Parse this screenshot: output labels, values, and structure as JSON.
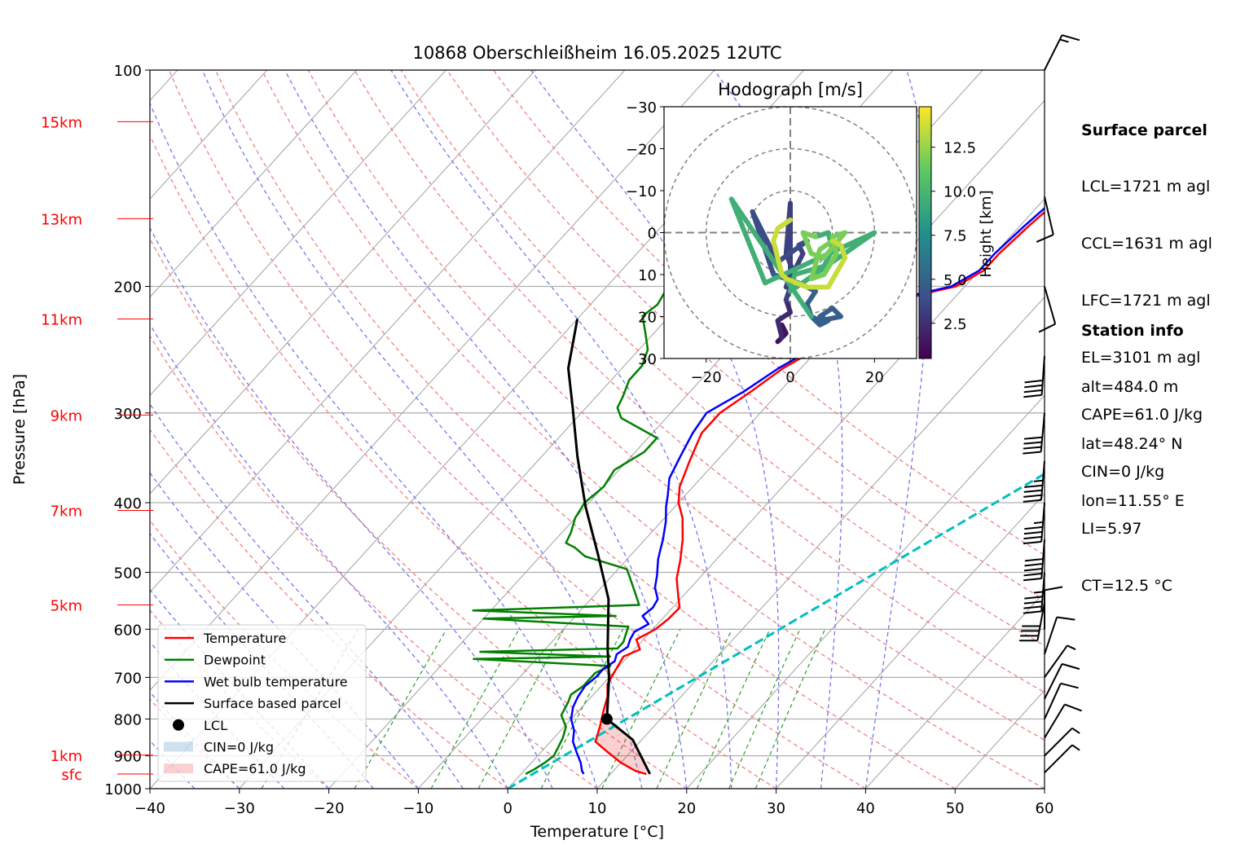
{
  "chart_data": {
    "type": "line",
    "title": "10868 Oberschleißheim 16.05.2025 12UTC",
    "xlabel": "Temperature [°C]",
    "ylabel": "Pressure [hPa]",
    "xlim": [
      -40,
      60
    ],
    "ylim": [
      1000,
      100
    ],
    "y_scale": "log",
    "x_ticks": [
      -40,
      -30,
      -20,
      -10,
      0,
      10,
      20,
      30,
      40,
      50,
      60
    ],
    "x_tick_labels": [
      "−40",
      "−30",
      "−20",
      "−10",
      "0",
      "10",
      "20",
      "30",
      "40",
      "50",
      "60"
    ],
    "y_ticks": [
      1000,
      900,
      800,
      700,
      600,
      500,
      400,
      300,
      200,
      100
    ],
    "y_tick_labels": [
      "1000",
      "900",
      "800",
      "700",
      "600",
      "500",
      "400",
      "300",
      "200",
      "100"
    ],
    "height_labels": [
      {
        "label": "sfc",
        "p": 954
      },
      {
        "label": "1km",
        "p": 898
      },
      {
        "label": "5km",
        "p": 555
      },
      {
        "label": "7km",
        "p": 410
      },
      {
        "label": "9km",
        "p": 302
      },
      {
        "label": "11km",
        "p": 222
      },
      {
        "label": "13km",
        "p": 161
      },
      {
        "label": "15km",
        "p": 118
      }
    ],
    "series": [
      {
        "name": "Temperature",
        "color": "#ff0000",
        "points": [
          [
            14.0,
            954
          ],
          [
            12.5,
            945
          ],
          [
            10.0,
            920
          ],
          [
            7.5,
            890
          ],
          [
            5.0,
            860
          ],
          [
            4.0,
            820
          ],
          [
            2.8,
            780
          ],
          [
            1.8,
            745
          ],
          [
            0.5,
            715
          ],
          [
            0.0,
            685
          ],
          [
            -0.5,
            655
          ],
          [
            0.6,
            640
          ],
          [
            -0.8,
            620
          ],
          [
            0.3,
            600
          ],
          [
            0.7,
            580
          ],
          [
            0.8,
            560
          ],
          [
            -0.5,
            540
          ],
          [
            -2.5,
            510
          ],
          [
            -4.0,
            480
          ],
          [
            -5.8,
            450
          ],
          [
            -8.0,
            420
          ],
          [
            -10.0,
            400
          ],
          [
            -11.5,
            380
          ],
          [
            -13.0,
            350
          ],
          [
            -14.5,
            320
          ],
          [
            -14.5,
            300
          ],
          [
            -13.2,
            280
          ],
          [
            -12.0,
            260
          ],
          [
            -10.0,
            243
          ],
          [
            -8.5,
            228
          ],
          [
            -6.2,
            212
          ],
          [
            -4.0,
            205
          ],
          [
            -1.0,
            200
          ],
          [
            0.5,
            190
          ],
          [
            0.5,
            180
          ],
          [
            1.0,
            165
          ],
          [
            1.5,
            155
          ],
          [
            2.5,
            140
          ],
          [
            3.0,
            130
          ],
          [
            6.0,
            125
          ],
          [
            8.0,
            122
          ],
          [
            9.5,
            118
          ],
          [
            11.0,
            113
          ],
          [
            10.5,
            110
          ]
        ]
      },
      {
        "name": "Dewpoint",
        "color": "#008000",
        "points": [
          [
            0.5,
            954
          ],
          [
            1.0,
            940
          ],
          [
            1.5,
            920
          ],
          [
            1.8,
            900
          ],
          [
            1.5,
            880
          ],
          [
            1.0,
            850
          ],
          [
            0.2,
            820
          ],
          [
            -1.5,
            790
          ],
          [
            -2.0,
            760
          ],
          [
            -2.5,
            740
          ],
          [
            -2.0,
            720
          ],
          [
            -2.0,
            690
          ],
          [
            -1.0,
            675
          ],
          [
            -17.0,
            660
          ],
          [
            -2.0,
            655
          ],
          [
            -17.0,
            645
          ],
          [
            -2.0,
            638
          ],
          [
            -2.0,
            625
          ],
          [
            -2.5,
            610
          ],
          [
            -3.0,
            595
          ],
          [
            -20.0,
            580
          ],
          [
            -5.5,
            575
          ],
          [
            -22.0,
            565
          ],
          [
            -4.0,
            555
          ],
          [
            -6.0,
            530
          ],
          [
            -9.0,
            495
          ],
          [
            -15.0,
            475
          ],
          [
            -17.0,
            462
          ],
          [
            -18.5,
            455
          ],
          [
            -19.0,
            440
          ],
          [
            -20.0,
            420
          ],
          [
            -20.5,
            400
          ],
          [
            -20.0,
            380
          ],
          [
            -20.5,
            360
          ],
          [
            -19.0,
            340
          ],
          [
            -19.0,
            325
          ],
          [
            -25.0,
            305
          ],
          [
            -26.5,
            295
          ],
          [
            -27.0,
            285
          ],
          [
            -28.0,
            270
          ],
          [
            -28.0,
            258
          ],
          [
            -29.0,
            245
          ],
          [
            -31.0,
            232
          ],
          [
            -33.0,
            220
          ],
          [
            -32.5,
            212
          ],
          [
            -33.0,
            203
          ],
          [
            -34.0,
            195
          ],
          [
            -34.5,
            182
          ],
          [
            -34.5,
            168
          ],
          [
            -34.5,
            158
          ],
          [
            -35.5,
            148
          ],
          [
            -36.0,
            140
          ],
          [
            -37.0,
            130
          ],
          [
            -38.0,
            122
          ],
          [
            -38.5,
            115
          ]
        ]
      },
      {
        "name": "Wet bulb temperature",
        "color": "#0000ff",
        "points": [
          [
            7.0,
            954
          ],
          [
            6.5,
            945
          ],
          [
            5.5,
            920
          ],
          [
            4.0,
            890
          ],
          [
            2.5,
            860
          ],
          [
            1.5,
            830
          ],
          [
            0.0,
            800
          ],
          [
            -1.0,
            770
          ],
          [
            -1.5,
            745
          ],
          [
            -1.8,
            720
          ],
          [
            -1.5,
            700
          ],
          [
            -1.5,
            680
          ],
          [
            -1.0,
            665
          ],
          [
            -1.5,
            650
          ],
          [
            -1.0,
            635
          ],
          [
            -1.5,
            620
          ],
          [
            -1.8,
            605
          ],
          [
            -1.0,
            590
          ],
          [
            -2.5,
            575
          ],
          [
            -2.2,
            560
          ],
          [
            -2.5,
            545
          ],
          [
            -4.0,
            525
          ],
          [
            -5.0,
            505
          ],
          [
            -6.5,
            480
          ],
          [
            -7.0,
            470
          ],
          [
            -8.0,
            450
          ],
          [
            -9.5,
            425
          ],
          [
            -11.0,
            405
          ],
          [
            -12.0,
            390
          ],
          [
            -13.5,
            370
          ],
          [
            -14.5,
            345
          ],
          [
            -15.5,
            320
          ],
          [
            -16.0,
            300
          ],
          [
            -14.0,
            280
          ],
          [
            -12.5,
            260
          ],
          [
            -10.5,
            243
          ],
          [
            -9.0,
            228
          ],
          [
            -6.8,
            212
          ],
          [
            -4.5,
            205
          ],
          [
            -1.5,
            200
          ],
          [
            0.0,
            190
          ],
          [
            0.0,
            180
          ],
          [
            0.5,
            165
          ],
          [
            1.0,
            155
          ],
          [
            2.0,
            140
          ],
          [
            2.5,
            130
          ],
          [
            5.5,
            125
          ],
          [
            7.5,
            122
          ],
          [
            9.0,
            118
          ],
          [
            10.5,
            113
          ],
          [
            10.0,
            110
          ]
        ]
      },
      {
        "name": "Surface based parcel",
        "color": "#000000",
        "points": [
          [
            14.4,
            954
          ],
          [
            9.0,
            855
          ],
          [
            4.0,
            800
          ],
          [
            0.0,
            700
          ],
          [
            -3.0,
            640
          ],
          [
            -8.0,
            545
          ],
          [
            -13.5,
            475
          ],
          [
            -20.0,
            405
          ],
          [
            -26.0,
            345
          ],
          [
            -31.5,
            295
          ],
          [
            -36.0,
            260
          ],
          [
            -40.0,
            222
          ]
        ]
      }
    ],
    "markers": [
      {
        "name": "LCL",
        "x": 4.0,
        "p": 800
      }
    ],
    "shaded": [
      {
        "name": "CIN=0 J/kg",
        "color": "#1f77b4"
      },
      {
        "name": "CAPE=61.0 J/kg",
        "color": "#e6282c"
      }
    ],
    "cyan_line": {
      "from": [
        0.0,
        1000
      ],
      "to": [
        60.0,
        115
      ]
    },
    "legend": {
      "placement": "lower-left",
      "entries": [
        "Temperature",
        "Dewpoint",
        "Wet bulb temperature",
        "Surface based parcel",
        "LCL",
        "CIN=0 J/kg",
        "CAPE=61.0 J/kg"
      ]
    },
    "grid": true,
    "hodograph": {
      "title": "Hodograph [m/s]",
      "xlim": [
        -30,
        30
      ],
      "ylim": [
        -30,
        30
      ],
      "ticks": [
        -30,
        -20,
        -10,
        0,
        10,
        20,
        30
      ],
      "x_tick_labels": [
        "−20",
        "0",
        "20"
      ],
      "y_tick_labels": [
        "30",
        "20",
        "10",
        "0",
        "−10",
        "−20",
        "−30"
      ],
      "rings": [
        10,
        20,
        30
      ],
      "colorbar": {
        "label": "Height [km]",
        "ticks": [
          "2.5",
          "5.0",
          "7.5",
          "10.0",
          "12.5"
        ],
        "min": 0.5,
        "max": 14.8
      },
      "segments": [
        {
          "h": 1.2,
          "pts": [
            [
              -2,
              -22
            ],
            [
              -1,
              -24
            ],
            [
              -3,
              -26
            ],
            [
              -2,
              -25
            ]
          ]
        },
        {
          "h": 2.3,
          "pts": [
            [
              -2,
              -25
            ],
            [
              -3,
              -21
            ],
            [
              0,
              -19
            ],
            [
              -1,
              -16
            ]
          ]
        },
        {
          "h": 3.3,
          "pts": [
            [
              -1,
              -16
            ],
            [
              1,
              -10
            ],
            [
              -1,
              -5
            ],
            [
              0,
              7
            ],
            [
              0,
              -6
            ],
            [
              0,
              -10
            ],
            [
              -1,
              -13
            ],
            [
              1,
              -9
            ],
            [
              3,
              -5
            ],
            [
              2,
              -3
            ],
            [
              4,
              -2
            ]
          ]
        },
        {
          "h": 3.8,
          "pts": [
            [
              4,
              -2
            ],
            [
              -3,
              -7
            ],
            [
              -9,
              5
            ],
            [
              -4,
              -10
            ]
          ]
        },
        {
          "h": 4.8,
          "pts": [
            [
              -4,
              -10
            ],
            [
              2,
              -12
            ],
            [
              6,
              -14
            ],
            [
              4,
              -17
            ],
            [
              5,
              -20
            ],
            [
              7,
              -22
            ],
            [
              9,
              -21
            ],
            [
              7,
              -20
            ],
            [
              10,
              -18
            ],
            [
              12,
              -20
            ],
            [
              7,
              -21
            ],
            [
              5,
              -20
            ]
          ]
        },
        {
          "h": 9.5,
          "pts": [
            [
              5,
              -20
            ],
            [
              -14,
              8
            ],
            [
              -6,
              -12
            ],
            [
              20,
              0
            ],
            [
              0,
              -14
            ],
            [
              1,
              -10
            ],
            [
              8,
              -8
            ],
            [
              10,
              -4
            ],
            [
              9,
              0
            ],
            [
              6,
              -1
            ]
          ]
        },
        {
          "h": 11.8,
          "pts": [
            [
              6,
              -1
            ],
            [
              3,
              0
            ],
            [
              5,
              -5
            ],
            [
              8,
              -6
            ],
            [
              13,
              0
            ],
            [
              10,
              -1
            ],
            [
              11,
              -5
            ],
            [
              8,
              -10
            ],
            [
              5,
              -11
            ],
            [
              7,
              -4
            ],
            [
              10,
              -2
            ]
          ]
        },
        {
          "h": 13.6,
          "pts": [
            [
              10,
              -2
            ],
            [
              12,
              -3
            ],
            [
              13,
              -6
            ],
            [
              9,
              -13
            ],
            [
              4,
              -13
            ],
            [
              -1,
              -11
            ],
            [
              -2,
              -10
            ],
            [
              -3,
              -6
            ],
            [
              -4,
              -2
            ],
            [
              -3,
              1
            ],
            [
              0,
              3
            ]
          ]
        }
      ]
    },
    "wind_barbs": [
      {
        "p": 950,
        "u": -3.0,
        "v": -3.0
      },
      {
        "p": 900,
        "u": -3.5,
        "v": -3.5
      },
      {
        "p": 850,
        "u": -3.0,
        "v": -5.0
      },
      {
        "p": 800,
        "u": -2.5,
        "v": -5.5
      },
      {
        "p": 750,
        "u": -2.5,
        "v": -5.0
      },
      {
        "p": 700,
        "u": -2.5,
        "v": -3.5
      },
      {
        "p": 650,
        "u": -2.0,
        "v": -6.0
      },
      {
        "p": 600,
        "u": 0.0,
        "v": -6.0
      },
      {
        "p": 550,
        "u": 4.0,
        "v": 22.0
      },
      {
        "p": 500,
        "u": 2.0,
        "v": 25.0
      },
      {
        "p": 450,
        "u": 2.0,
        "v": 26.0
      },
      {
        "p": 400,
        "u": 2.0,
        "v": 25.0
      },
      {
        "p": 350,
        "u": 2.0,
        "v": 24.0
      },
      {
        "p": 300,
        "u": 2.0,
        "v": 22.0
      },
      {
        "p": 250,
        "u": 1.5,
        "v": 21.0
      },
      {
        "p": 200,
        "u": -2.0,
        "v": 7.0
      },
      {
        "p": 150,
        "u": -1.5,
        "v": 6.5
      },
      {
        "p": 100,
        "u": -4.0,
        "v": -8.0
      }
    ]
  },
  "panel": {
    "surface_title": "Surface parcel",
    "surface_lines": [
      "LCL=1721 m agl",
      "CCL=1631 m agl",
      "LFC=1721 m agl",
      "EL=3101 m agl",
      "CAPE=61.0 J/kg",
      "CIN=0 J/kg",
      "LI=5.97",
      "CT=12.5 °C"
    ],
    "station_title": "Station info",
    "station_lines": [
      "alt=484.0 m",
      "lat=48.24° N",
      "lon=11.55° E"
    ]
  },
  "colors": {
    "temperature": "#ff0000",
    "dewpoint": "#008000",
    "wetbulb": "#0000ff",
    "parcel": "#000000",
    "height_labels": "#ff0000",
    "cyan": "#00bfbf"
  }
}
